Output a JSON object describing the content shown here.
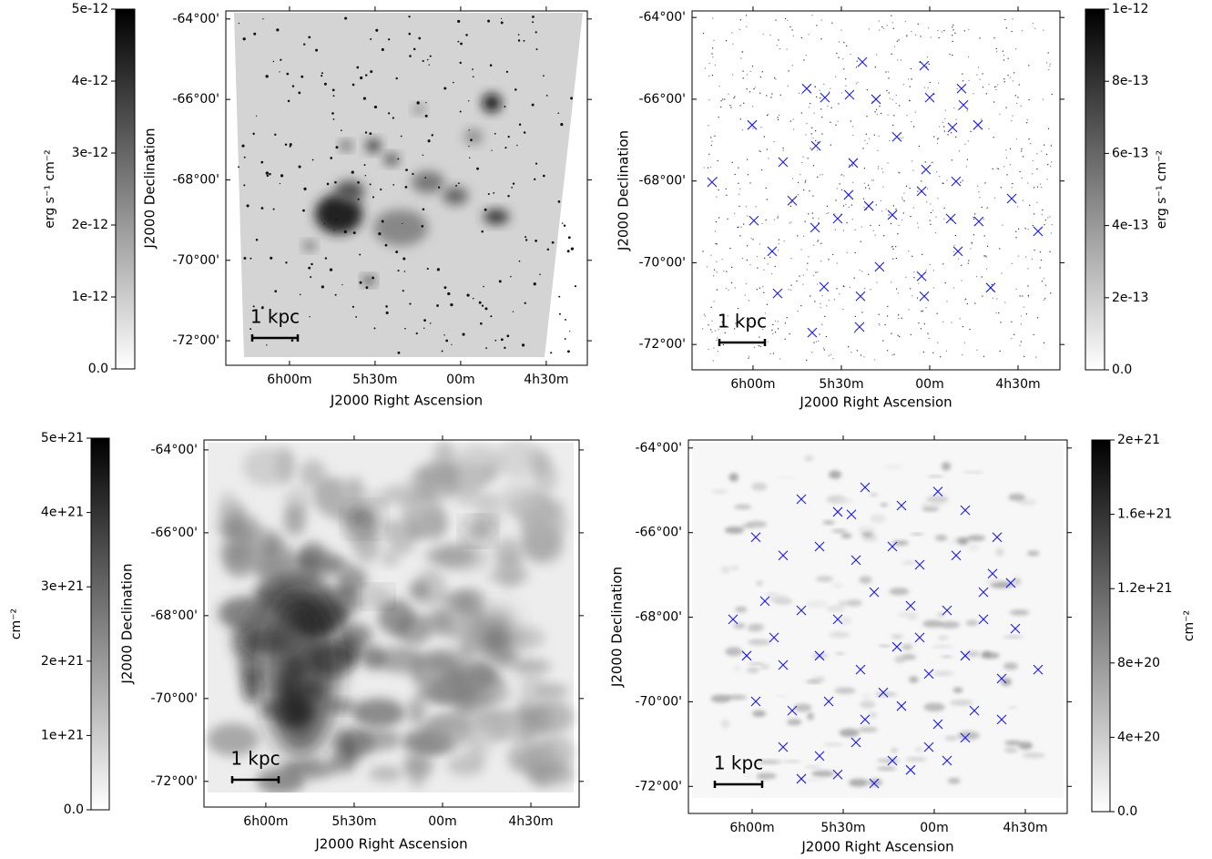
{
  "chart_data": [
    {
      "type": "image",
      "xlabel": "J2000 Right Ascension",
      "ylabel": "J2000 Declination",
      "scale_bar_label": "1 kpc",
      "xlim": [
        6.372,
        4.26
      ],
      "ylim": [
        -72.61,
        -63.8
      ],
      "xticks": [
        {
          "value": 6,
          "label": "6h00m"
        },
        {
          "value": 5.5,
          "label": "5h30m"
        },
        {
          "value": 5,
          "label": "00m"
        },
        {
          "value": 4.5,
          "label": "4h30m"
        }
      ],
      "yticks": [
        {
          "value": -64,
          "label": "-64°00'"
        },
        {
          "value": -66,
          "label": "-66°00'"
        },
        {
          "value": -68,
          "label": "-68°00'"
        },
        {
          "value": -70,
          "label": "-70°00'"
        },
        {
          "value": -72,
          "label": "-72°00'"
        }
      ],
      "colorbar": {
        "label": "erg s⁻¹ cm⁻²",
        "lim": [
          0,
          5e-12
        ],
        "ticks": [
          {
            "value": 0,
            "label": "0.0"
          },
          {
            "value": 1e-12,
            "label": "1e-12"
          },
          {
            "value": 2e-12,
            "label": "2e-12"
          },
          {
            "value": 3e-12,
            "label": "3e-12"
          },
          {
            "value": 4e-12,
            "label": "4e-12"
          },
          {
            "value": 5e-12,
            "label": "5e-12"
          }
        ]
      }
    },
    {
      "type": "scatter",
      "xlabel": "J2000 Right Ascension",
      "ylabel": "J2000 Declination",
      "scale_bar_label": "1 kpc",
      "xlim": [
        6.345,
        4.263
      ],
      "ylim": [
        -72.62,
        -63.84
      ],
      "color": "#1a1ae6",
      "xticks": [
        {
          "value": 6,
          "label": "6h00m"
        },
        {
          "value": 5.5,
          "label": "5h30m"
        },
        {
          "value": 5,
          "label": "00m"
        },
        {
          "value": 4.5,
          "label": "4h30m"
        }
      ],
      "yticks": [
        {
          "value": -64,
          "label": "-64°00'"
        },
        {
          "value": -66,
          "label": "-66°00'"
        },
        {
          "value": -68,
          "label": "-68°00'"
        },
        {
          "value": -70,
          "label": "-70°00'"
        },
        {
          "value": -72,
          "label": "-72°00'"
        }
      ],
      "x": [
        5.381,
        5.031,
        4.82,
        4.809,
        6.005,
        5.696,
        5.593,
        5.454,
        5.304,
        5.0,
        4.871,
        4.727,
        5.83,
        5.644,
        5.433,
        5.186,
        5.021,
        4.851,
        6.232,
        5.995,
        5.778,
        5.649,
        5.521,
        5.345,
        5.211,
        5.046,
        4.881,
        4.722,
        4.536,
        4.387,
        5.892,
        5.598,
        5.392,
        5.284,
        5.046,
        4.84,
        4.655,
        5.861,
        5.665,
        5.397,
        5.031,
        5.459
      ],
      "values": [
        -65.09,
        -65.18,
        -65.74,
        -66.14,
        -66.63,
        -65.74,
        -65.96,
        -65.89,
        -66.0,
        -65.96,
        -66.69,
        -66.63,
        -67.54,
        -67.14,
        -67.56,
        -66.92,
        -67.72,
        -68.01,
        -68.03,
        -68.97,
        -68.48,
        -69.14,
        -68.92,
        -68.61,
        -68.83,
        -68.25,
        -68.92,
        -68.99,
        -68.43,
        -69.23,
        -69.72,
        -70.59,
        -70.82,
        -70.1,
        -70.33,
        -69.72,
        -70.61,
        -70.75,
        -71.71,
        -71.57,
        -70.82,
        -68.34
      ],
      "colorbar": {
        "label": "erg s⁻¹ cm⁻²",
        "lim": [
          0,
          1e-12
        ],
        "ticks": [
          {
            "value": 0,
            "label": "0.0"
          },
          {
            "value": 2e-13,
            "label": "2e-13"
          },
          {
            "value": 4e-13,
            "label": "4e-13"
          },
          {
            "value": 6e-13,
            "label": "6e-13"
          },
          {
            "value": 8e-13,
            "label": "8e-13"
          },
          {
            "value": 1e-12,
            "label": "1e-12"
          }
        ]
      }
    },
    {
      "type": "image",
      "xlabel": "J2000 Right Ascension",
      "ylabel": "J2000 Declination",
      "scale_bar_label": "1 kpc",
      "xlim": [
        6.35,
        4.227
      ],
      "ylim": [
        -72.62,
        -63.76
      ],
      "xticks": [
        {
          "value": 6,
          "label": "6h00m"
        },
        {
          "value": 5.5,
          "label": "5h30m"
        },
        {
          "value": 5,
          "label": "00m"
        },
        {
          "value": 4.5,
          "label": "4h30m"
        }
      ],
      "yticks": [
        {
          "value": -64,
          "label": "-64°00'"
        },
        {
          "value": -66,
          "label": "-66°00'"
        },
        {
          "value": -68,
          "label": "-68°00'"
        },
        {
          "value": -70,
          "label": "-70°00'"
        },
        {
          "value": -72,
          "label": "-72°00'"
        }
      ],
      "colorbar": {
        "label": "cm⁻²",
        "lim": [
          0,
          5e+21
        ],
        "ticks": [
          {
            "value": 0,
            "label": "0.0"
          },
          {
            "value": 1e+21,
            "label": "1e+21"
          },
          {
            "value": 2e+21,
            "label": "2e+21"
          },
          {
            "value": 3e+21,
            "label": "3e+21"
          },
          {
            "value": 4e+21,
            "label": "4e+21"
          },
          {
            "value": 5e+21,
            "label": "5e+21"
          }
        ]
      }
    },
    {
      "type": "scatter",
      "xlabel": "J2000 Right Ascension",
      "ylabel": "J2000 Declination",
      "scale_bar_label": "1 kpc",
      "xlim": [
        6.35,
        4.27
      ],
      "ylim": [
        -72.64,
        -63.81
      ],
      "color": "#1a1ae6",
      "xticks": [
        {
          "value": 6,
          "label": "6h00m"
        },
        {
          "value": 5.5,
          "label": "5h30m"
        },
        {
          "value": 5,
          "label": "00m"
        },
        {
          "value": 4.5,
          "label": "4h30m"
        }
      ],
      "yticks": [
        {
          "value": -64,
          "label": "-64°00'"
        },
        {
          "value": -66,
          "label": "-66°00'"
        },
        {
          "value": -68,
          "label": "-68°00'"
        },
        {
          "value": -70,
          "label": "-70°00'"
        },
        {
          "value": -72,
          "label": "-72°00'"
        }
      ],
      "x": [
        5.73,
        5.53,
        5.38,
        5.18,
        4.98,
        4.83,
        4.655,
        5.98,
        5.83,
        5.63,
        5.43,
        5.23,
        5.08,
        4.88,
        4.68,
        4.58,
        6.105,
        5.93,
        5.73,
        5.53,
        5.33,
        5.13,
        4.93,
        4.73,
        4.555,
        6.03,
        5.83,
        5.63,
        5.405,
        5.205,
        5.03,
        4.83,
        4.63,
        4.43,
        5.98,
        5.78,
        5.58,
        5.38,
        5.18,
        4.98,
        4.78,
        4.63,
        5.83,
        5.63,
        5.43,
        5.23,
        5.03,
        4.83,
        5.53,
        5.33,
        5.13,
        4.93,
        5.73,
        5.455,
        4.73,
        5.88,
        5.28,
        5.08
      ],
      "values": [
        -65.21,
        -65.51,
        -64.93,
        -65.36,
        -65.03,
        -65.47,
        -66.11,
        -66.11,
        -66.54,
        -66.33,
        -66.65,
        -66.33,
        -66.76,
        -66.54,
        -66.97,
        -67.19,
        -68.05,
        -67.62,
        -67.84,
        -68.05,
        -67.41,
        -67.73,
        -67.84,
        -68.05,
        -68.27,
        -68.91,
        -69.13,
        -68.91,
        -69.24,
        -68.7,
        -69.34,
        -68.91,
        -69.45,
        -69.24,
        -69.99,
        -70.21,
        -69.99,
        -70.42,
        -70.1,
        -70.53,
        -70.21,
        -70.42,
        -71.07,
        -71.28,
        -70.96,
        -71.39,
        -71.07,
        -70.85,
        -71.72,
        -71.93,
        -71.61,
        -71.39,
        -71.82,
        -65.57,
        -67.41,
        -68.48,
        -69.78,
        -68.48
      ],
      "colorbar": {
        "label": "cm⁻²",
        "lim": [
          0,
          2e+21
        ],
        "ticks": [
          {
            "value": 0,
            "label": "0.0"
          },
          {
            "value": 4e+20,
            "label": "4e+20"
          },
          {
            "value": 8e+20,
            "label": "8e+20"
          },
          {
            "value": 1.2e+21,
            "label": "1.2e+21"
          },
          {
            "value": 1.6e+21,
            "label": "1.6e+21"
          },
          {
            "value": 2e+21,
            "label": "2e+21"
          }
        ]
      }
    }
  ]
}
